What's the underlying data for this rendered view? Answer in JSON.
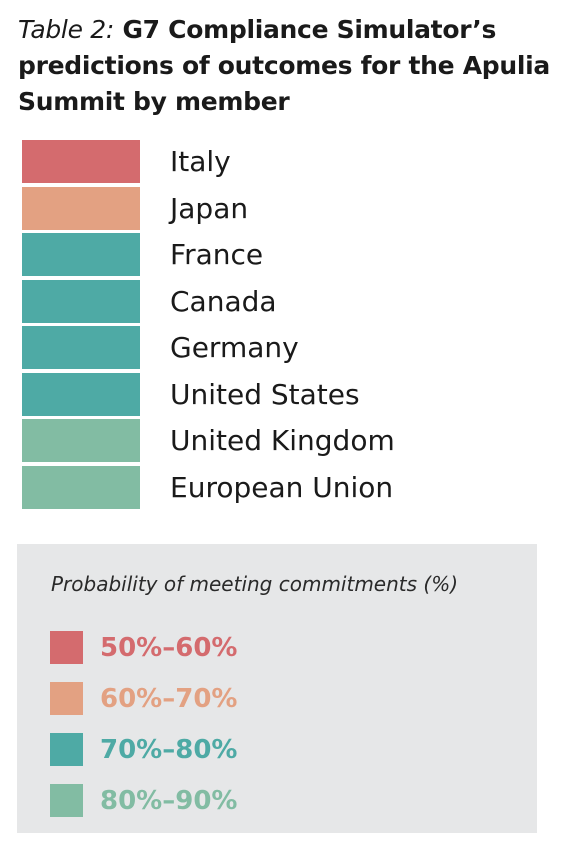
{
  "header": {
    "title_prefix": "Table 2:",
    "title_main": "G7 Compliance Simulator’s predictions of outcomes for the Apulia Summit by member"
  },
  "colors": {
    "band_50_60": "#d46b6e",
    "band_60_70": "#e3a182",
    "band_70_80": "#4eaaa5",
    "band_80_90": "#82bca3"
  },
  "chart_data": {
    "type": "table",
    "title": "G7 Compliance Simulator’s predictions of outcomes for the Apulia Summit by member",
    "members": [
      {
        "name": "Italy",
        "band": "50%–60%",
        "color": "#d46b6e"
      },
      {
        "name": "Japan",
        "band": "60%–70%",
        "color": "#e3a182"
      },
      {
        "name": "France",
        "band": "70%–80%",
        "color": "#4eaaa5"
      },
      {
        "name": "Canada",
        "band": "70%–80%",
        "color": "#4eaaa5"
      },
      {
        "name": "Germany",
        "band": "70%–80%",
        "color": "#4eaaa5"
      },
      {
        "name": "United States",
        "band": "70%–80%",
        "color": "#4eaaa5"
      },
      {
        "name": "United Kingdom",
        "band": "80%–90%",
        "color": "#82bca3"
      },
      {
        "name": "European Union",
        "band": "80%–90%",
        "color": "#82bca3"
      }
    ]
  },
  "legend": {
    "title": "Probability of meeting commitments (%)",
    "position": "bottom",
    "items": [
      {
        "label": "50%–60%",
        "color": "#d46b6e"
      },
      {
        "label": "60%–70%",
        "color": "#e3a182"
      },
      {
        "label": "70%–80%",
        "color": "#4eaaa5"
      },
      {
        "label": "80%–90%",
        "color": "#82bca3"
      }
    ]
  }
}
